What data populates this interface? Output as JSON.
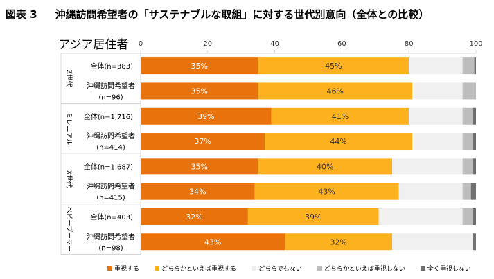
{
  "title": {
    "figure_no": "図表 3",
    "text": "沖縄訪問希望者の「サステナブルな取組」に対する世代別意向（全体との比較）"
  },
  "subtitle": "アジア居住者",
  "chart_data": {
    "type": "bar",
    "orientation": "horizontal-stacked-100",
    "title": "沖縄訪問希望者の「サステナブルな取組」に対する世代別意向（全体との比較）",
    "subtitle": "アジア居住者",
    "xlim": [
      0,
      100
    ],
    "xticks": [
      0,
      20,
      40,
      60,
      80,
      100
    ],
    "grid": true,
    "legend_position": "bottom",
    "colors": [
      "#E8720C",
      "#FDB11E",
      "#F0F0F0",
      "#BDBDBD",
      "#707070"
    ],
    "series_names": [
      "重視する",
      "どちらかといえば重視する",
      "どちらでもない",
      "どちらかといえば重視しない",
      "全く重視しない"
    ],
    "groups": [
      {
        "name": "Z世代",
        "rows": [
          {
            "label": "全体(n=383)",
            "values": [
              35,
              45,
              16,
              3.5,
              0.5
            ],
            "labels": [
              "35%",
              "45%"
            ]
          },
          {
            "label": "沖縄訪問希望者\n(n=96)",
            "values": [
              35,
              46,
              15,
              4,
              0
            ],
            "labels": [
              "35%",
              "46%"
            ]
          }
        ]
      },
      {
        "name": "ミレニアル",
        "rows": [
          {
            "label": "全体(n=1,716)",
            "values": [
              39,
              41,
              16,
              3,
              1
            ],
            "labels": [
              "39%",
              "41%"
            ]
          },
          {
            "label": "沖縄訪問希望者\n(n=414)",
            "values": [
              37,
              44,
              15,
              3,
              1
            ],
            "labels": [
              "37%",
              "44%"
            ]
          }
        ]
      },
      {
        "name": "X世代",
        "rows": [
          {
            "label": "全体(n=1,687)",
            "values": [
              35,
              40,
              21,
              3,
              1
            ],
            "labels": [
              "35%",
              "40%"
            ]
          },
          {
            "label": "沖縄訪問希望者\n(n=415)",
            "values": [
              34,
              43,
              19,
              2.5,
              1.5
            ],
            "labels": [
              "34%",
              "43%"
            ]
          }
        ]
      },
      {
        "name": "ベビーブーマー",
        "rows": [
          {
            "label": "全体(n=403)",
            "values": [
              32,
              39,
              25,
              3,
              1
            ],
            "labels": [
              "32%",
              "39%"
            ]
          },
          {
            "label": "沖縄訪問希望者\n(n=98)",
            "values": [
              43,
              32,
              24,
              0,
              1
            ],
            "labels": [
              "43%",
              "32%"
            ]
          }
        ]
      }
    ]
  }
}
